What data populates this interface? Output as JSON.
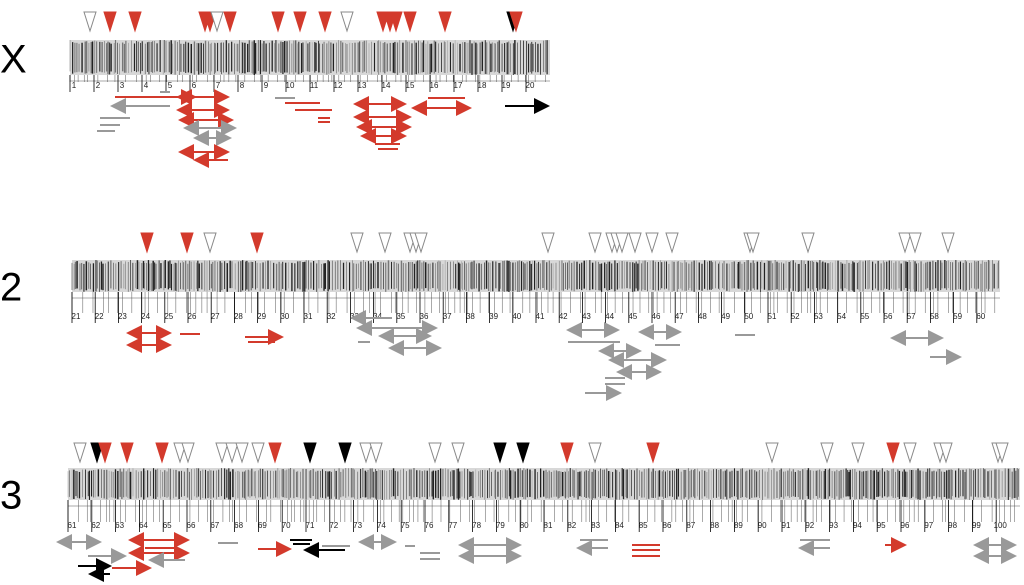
{
  "arms": [
    {
      "label": "X",
      "divisions": [
        1,
        2,
        3,
        4,
        5,
        6,
        7,
        8,
        9,
        10,
        11,
        12,
        13,
        14,
        15,
        16,
        17,
        18,
        19,
        20
      ]
    },
    {
      "label": "2",
      "divisions": [
        21,
        22,
        23,
        24,
        25,
        26,
        27,
        28,
        29,
        30,
        31,
        32,
        33,
        34,
        35,
        36,
        37,
        38,
        39,
        40,
        41,
        42,
        43,
        44,
        45,
        46,
        47,
        48,
        49,
        50,
        51,
        52,
        53,
        54,
        55,
        56,
        57,
        58,
        59,
        60
      ]
    },
    {
      "label": "3",
      "divisions": [
        61,
        62,
        63,
        64,
        65,
        66,
        67,
        68,
        69,
        70,
        71,
        72,
        73,
        74,
        75,
        76,
        77,
        78,
        79,
        80,
        81,
        82,
        83,
        84,
        85,
        86,
        87,
        88,
        89,
        90,
        91,
        92,
        93,
        94,
        95,
        96,
        97,
        98,
        99,
        100
      ]
    }
  ]
}
